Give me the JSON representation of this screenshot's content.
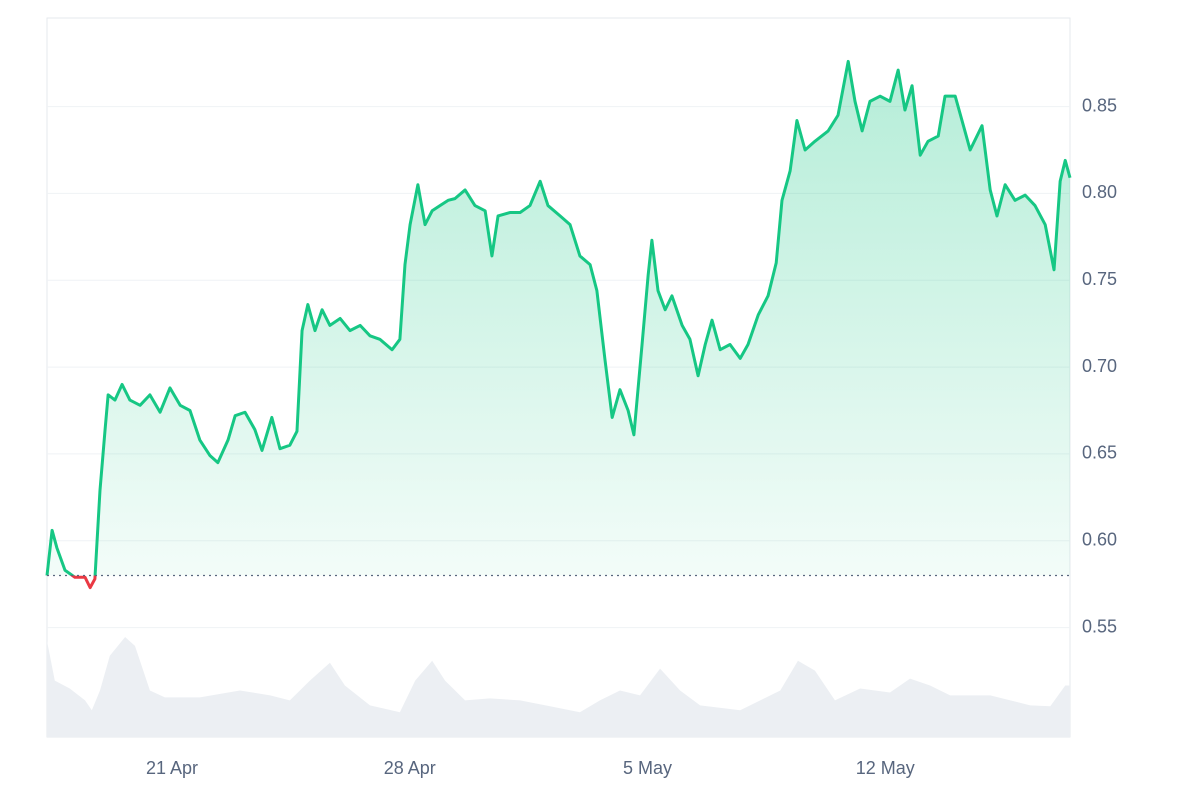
{
  "chart_data": {
    "type": "line",
    "x": [
      17.32,
      17.47,
      17.61,
      17.85,
      18.14,
      18.44,
      18.59,
      18.73,
      18.88,
      19.03,
      19.12,
      19.32,
      19.53,
      19.76,
      20.06,
      20.35,
      20.65,
      20.94,
      21.24,
      21.53,
      21.82,
      22.12,
      22.35,
      22.65,
      22.86,
      23.15,
      23.44,
      23.65,
      23.94,
      24.18,
      24.47,
      24.68,
      24.83,
      25.0,
      25.21,
      25.42,
      25.65,
      25.95,
      26.24,
      26.54,
      26.83,
      27.12,
      27.48,
      27.71,
      27.86,
      28.01,
      28.24,
      28.45,
      28.66,
      28.89,
      29.13,
      29.33,
      29.63,
      29.92,
      30.22,
      30.42,
      30.6,
      30.95,
      31.25,
      31.54,
      31.84,
      32.07,
      32.43,
      32.72,
      33.01,
      33.31,
      33.51,
      33.75,
      33.96,
      34.19,
      34.43,
      34.6,
      34.84,
      35.02,
      35.13,
      35.31,
      35.52,
      35.72,
      36.02,
      36.25,
      36.49,
      36.7,
      36.9,
      37.14,
      37.43,
      37.73,
      37.96,
      38.26,
      38.55,
      38.79,
      38.96,
      39.2,
      39.4,
      39.64,
      39.93,
      40.32,
      40.61,
      40.91,
      41.11,
      41.32,
      41.55,
      41.85,
      42.14,
      42.38,
      42.58,
      42.79,
      43.03,
      43.26,
      43.56,
      43.76,
      44.06,
      44.26,
      44.5,
      44.85,
      45.09,
      45.29,
      45.53,
      45.82,
      46.12,
      46.41,
      46.71,
      46.97,
      47.15,
      47.3,
      47.44
    ],
    "series": [
      {
        "color": "#16c784",
        "values": [
          0.58,
          0.606,
          0.596,
          0.583,
          0.579,
          0.579,
          0.573,
          0.578,
          0.629,
          0.664,
          0.684,
          0.681,
          0.69,
          0.681,
          0.678,
          0.684,
          0.674,
          0.688,
          0.678,
          0.675,
          0.658,
          0.649,
          0.645,
          0.658,
          0.672,
          0.674,
          0.664,
          0.652,
          0.671,
          0.653,
          0.655,
          0.663,
          0.721,
          0.736,
          0.721,
          0.733,
          0.724,
          0.728,
          0.721,
          0.724,
          0.718,
          0.716,
          0.71,
          0.716,
          0.759,
          0.782,
          0.805,
          0.782,
          0.79,
          0.793,
          0.796,
          0.797,
          0.802,
          0.793,
          0.79,
          0.764,
          0.787,
          0.789,
          0.789,
          0.793,
          0.807,
          0.793,
          0.787,
          0.782,
          0.764,
          0.759,
          0.744,
          0.704,
          0.671,
          0.687,
          0.675,
          0.661,
          0.713,
          0.753,
          0.773,
          0.744,
          0.733,
          0.741,
          0.724,
          0.716,
          0.695,
          0.713,
          0.727,
          0.71,
          0.713,
          0.705,
          0.713,
          0.73,
          0.741,
          0.76,
          0.796,
          0.813,
          0.842,
          0.825,
          0.83,
          0.836,
          0.845,
          0.876,
          0.853,
          0.836,
          0.853,
          0.856,
          0.853,
          0.871,
          0.848,
          0.862,
          0.822,
          0.83,
          0.833,
          0.856,
          0.856,
          0.842,
          0.825,
          0.839,
          0.802,
          0.787,
          0.805,
          0.796,
          0.799,
          0.793,
          0.782,
          0.756,
          0.807,
          0.819,
          0.809
        ]
      }
    ],
    "down_color": "#ea3943",
    "baseline": 0.58,
    "volume": {
      "color": "#eceff3",
      "x": [
        17.32,
        17.55,
        17.99,
        18.44,
        18.64,
        18.88,
        19.17,
        19.62,
        19.91,
        20.35,
        20.79,
        21.82,
        23.0,
        23.89,
        24.47,
        25.06,
        25.65,
        26.09,
        26.83,
        27.71,
        28.16,
        28.66,
        29.04,
        29.63,
        30.36,
        31.25,
        32.13,
        33.01,
        33.6,
        34.19,
        34.78,
        35.37,
        35.96,
        36.55,
        37.73,
        38.32,
        38.91,
        39.43,
        39.93,
        40.52,
        41.26,
        42.14,
        42.73,
        43.32,
        43.91,
        45.09,
        46.27,
        46.86,
        47.3,
        47.44
      ],
      "values": [
        97,
        57,
        49,
        37,
        27,
        47,
        82,
        101,
        92,
        47,
        40,
        40,
        47,
        42,
        37,
        57,
        75,
        52,
        32,
        25,
        57,
        77,
        57,
        37,
        39,
        37,
        31,
        25,
        37,
        47,
        42,
        69,
        47,
        32,
        27,
        37,
        47,
        77,
        67,
        37,
        49,
        45,
        59,
        52,
        42,
        42,
        32,
        31,
        52,
        52
      ]
    },
    "xlim": [
      17.32,
      47.44
    ],
    "xticks": [
      {
        "value": 21,
        "label": "21 Apr"
      },
      {
        "value": 28,
        "label": "28 Apr"
      },
      {
        "value": 35,
        "label": "5 May"
      },
      {
        "value": 42,
        "label": "12 May"
      }
    ],
    "ylim": [
      0.487,
      0.901
    ],
    "yticks": [
      0.55,
      {
        "value": 0.6,
        "label": "0.60"
      },
      0.65,
      {
        "value": 0.7,
        "label": "0.70"
      },
      0.75,
      {
        "value": 0.8,
        "label": "0.80"
      },
      0.85
    ],
    "grid": true
  }
}
